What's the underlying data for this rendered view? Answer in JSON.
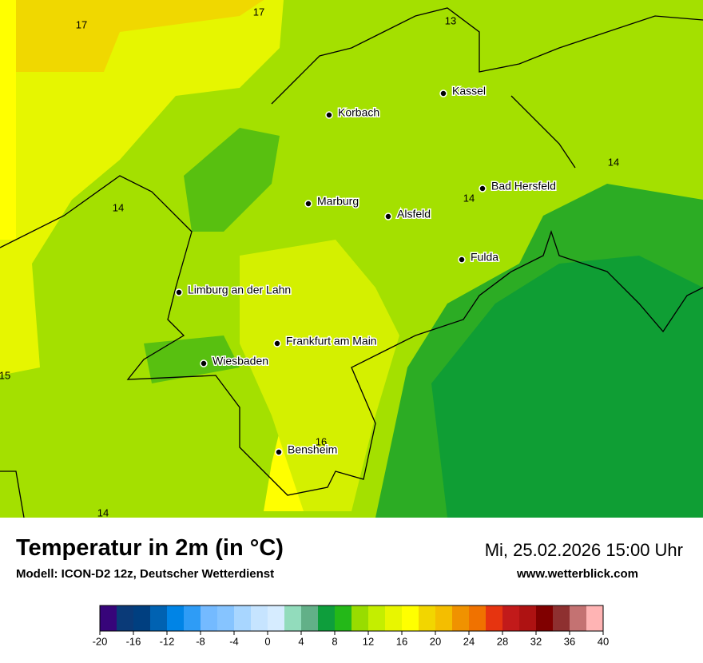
{
  "map": {
    "cities": [
      "Kassel",
      "Korbach",
      "Bad Hersfeld",
      "Marburg",
      "Alsfeld",
      "Fulda",
      "Limburg an der Lahn",
      "Frankfurt am Main",
      "Wiesbaden",
      "Bensheim"
    ],
    "contour_labels": [
      17,
      17,
      13,
      14,
      14,
      14,
      15,
      16,
      14
    ]
  },
  "header": {
    "title": "Temperatur in 2m (in °C)",
    "subtitle": "Modell: ICON-D2 12z, Deutscher Wetterdienst",
    "datetime": "Mi, 25.02.2026 15:00 Uhr",
    "website": "www.wetterblick.com"
  },
  "legend": {
    "ticks": [
      -20,
      -16,
      -12,
      -8,
      -4,
      0,
      4,
      8,
      12,
      16,
      20,
      24,
      28,
      32,
      36,
      40
    ],
    "colors": [
      "#37057a",
      "#0a3a78",
      "#003f80",
      "#0062b2",
      "#0084e6",
      "#2e9cf6",
      "#74baff",
      "#86c4ff",
      "#a8d6ff",
      "#c6e4ff",
      "#d6ecff",
      "#92dcbc",
      "#62b088",
      "#0e9e3c",
      "#24b818",
      "#98dc00",
      "#c4ee00",
      "#e8f600",
      "#ffff00",
      "#f2d600",
      "#f4be00",
      "#f09200",
      "#f07200",
      "#e63410",
      "#c21a1a",
      "#ae1212",
      "#800000",
      "#8e3030",
      "#c47272",
      "#ffb4b4",
      "#ffdede"
    ]
  }
}
